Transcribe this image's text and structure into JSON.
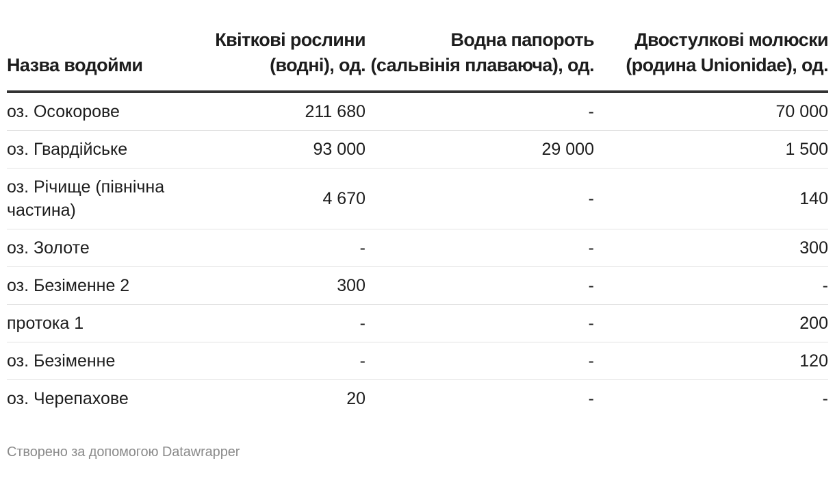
{
  "chart_data": {
    "type": "table",
    "columns": [
      "Назва водойми",
      "Квіткові рослини (водні), од.",
      "Водна папороть (сальвінія плаваюча), од.",
      "Двостулкові молюски (родина Unionidae), од."
    ],
    "rows": [
      [
        "оз. Осокорове",
        "211 680",
        "-",
        "70 000"
      ],
      [
        "оз. Гвардійське",
        "93 000",
        "29 000",
        "1 500"
      ],
      [
        "оз. Річище (північна частина)",
        "4 670",
        "-",
        "140"
      ],
      [
        "оз. Золоте",
        "-",
        "-",
        "300"
      ],
      [
        "оз. Безіменне 2",
        "300",
        "-",
        "-"
      ],
      [
        "протока 1",
        "-",
        "-",
        "200"
      ],
      [
        "оз. Безіменне",
        "-",
        "-",
        "120"
      ],
      [
        "оз. Черепахове",
        "20",
        "-",
        "-"
      ]
    ],
    "footer": "Створено за допомогою Datawrapper"
  }
}
